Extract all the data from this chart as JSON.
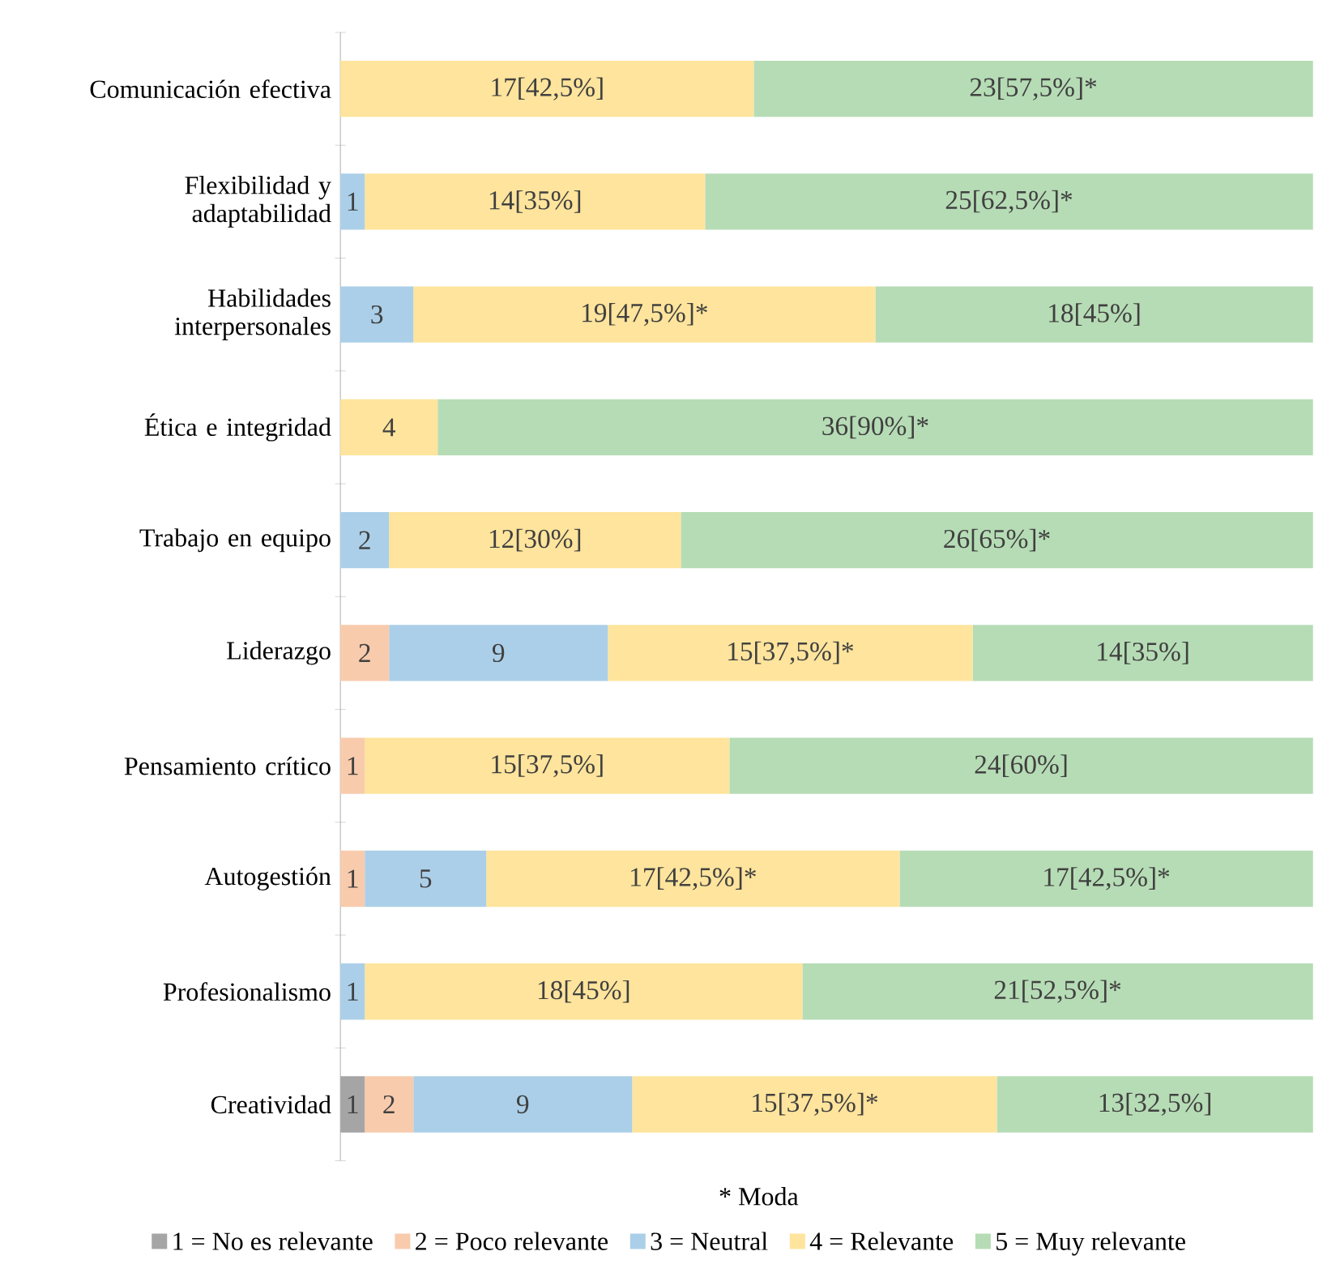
{
  "chart_data": {
    "type": "bar",
    "orientation": "horizontal",
    "stacked": true,
    "tick_labels": "y",
    "legend": "bottom",
    "xlim": [
      0,
      40
    ],
    "categories": [
      "Comunicación efectiva",
      "Flexibilidad y adaptabilidad",
      "Habilidades interpersonales",
      "Ética e integridad",
      "Trabajo en equipo",
      "Liderazgo",
      "Pensamiento crítico",
      "Autogestión",
      "Profesionalismo",
      "Creatividad"
    ],
    "series": [
      {
        "name": "1 = No es relevante",
        "color": "#a5a5a5",
        "values": [
          0,
          0,
          0,
          0,
          0,
          0,
          0,
          0,
          0,
          1
        ],
        "value_labels": [
          null,
          null,
          null,
          null,
          null,
          null,
          null,
          null,
          null,
          "1"
        ]
      },
      {
        "name": "2 = Poco relevante",
        "color": "#f8cbad",
        "values": [
          0,
          0,
          0,
          0,
          0,
          2,
          1,
          1,
          0,
          2
        ],
        "value_labels": [
          null,
          null,
          null,
          null,
          null,
          "2",
          "1",
          "1",
          null,
          "2"
        ]
      },
      {
        "name": "3 = Neutral",
        "color": "#abcfe8",
        "values": [
          0,
          1,
          3,
          0,
          2,
          9,
          0,
          5,
          1,
          9
        ],
        "value_labels": [
          null,
          "1",
          "3",
          null,
          "2",
          "9",
          null,
          "5",
          "1",
          "9"
        ]
      },
      {
        "name": "4 = Relevante",
        "color": "#fee49c",
        "values": [
          17,
          14,
          19,
          4,
          12,
          15,
          15,
          17,
          18,
          15
        ],
        "value_labels": [
          "17[42,5%]",
          "14[35%]",
          "19[47,5%]*",
          "4",
          "12[30%]",
          "15[37,5%]*",
          "15[37,5%]",
          "17[42,5%]*",
          "18[45%]",
          "15[37,5%]*"
        ]
      },
      {
        "name": "5 = Muy relevante",
        "color": "#b6dcb5",
        "values": [
          23,
          25,
          18,
          36,
          26,
          14,
          24,
          17,
          21,
          13
        ],
        "value_labels": [
          "23[57,5%]*",
          "25[62,5%]*",
          "18[45%]",
          "36[90%]*",
          "26[65%]*",
          "14[35%]",
          "24[60%]",
          "17[42,5%]*",
          "21[52,5%]*",
          "13[32,5%]"
        ]
      }
    ],
    "annotations": [
      "* Moda"
    ]
  }
}
